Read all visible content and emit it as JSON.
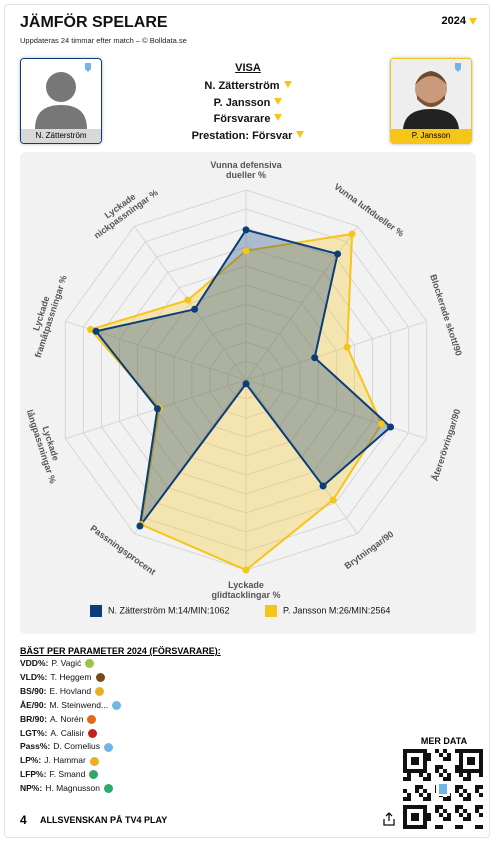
{
  "header": {
    "title": "JÄMFÖR SPELARE",
    "subtitle": "Uppdateras 24 timmar efter match – © Bolldata.se",
    "year": "2024"
  },
  "players": [
    {
      "name": "N. Zätterström"
    },
    {
      "name": "P. Jansson"
    }
  ],
  "filters": {
    "title": "VISA",
    "items": [
      "N. Zätterström",
      "P. Jansson",
      "Försvarare",
      "Prestation: Försvar"
    ]
  },
  "chart_data": {
    "type": "radar",
    "categories": [
      "Vunna defensiva dueller %",
      "Vunna luftdueller %",
      "Blockerade skott/90",
      "Återerövringar/90",
      "Brytningar/90",
      "Lyckade glidtacklingar %",
      "Passningsprocent",
      "Lyckade långpassningar %",
      "Lyckade framåtpassningar %",
      "Lyckade nickpassningar %"
    ],
    "rlim": [
      0,
      100
    ],
    "series": [
      {
        "name": "P. Jansson M:26/MIN:2564",
        "color": "#f5c518",
        "values": [
          68,
          95,
          56,
          75,
          78,
          100,
          94,
          48,
          86,
          52
        ]
      },
      {
        "name": "N. Zätterström M:14/MIN:1062",
        "color": "#0a3d7a",
        "values": [
          79,
          82,
          38,
          80,
          69,
          2,
          95,
          49,
          83,
          46
        ]
      }
    ]
  },
  "best": {
    "title": "BÄST PER PARAMETER 2024 (FÖRSVARARE):",
    "rows": [
      {
        "key": "VDD%:",
        "player": "P. Vagić"
      },
      {
        "key": "VLD%:",
        "player": "T. Heggem"
      },
      {
        "key": "BS/90:",
        "player": "E. Hovland"
      },
      {
        "key": "ÅE/90:",
        "player": "M. Steinwend..."
      },
      {
        "key": "BR/90:",
        "player": "A. Norén"
      },
      {
        "key": "LGT%:",
        "player": "A. Calisir"
      },
      {
        "key": "Pass%:",
        "player": "D. Cornelius"
      },
      {
        "key": "LP%:",
        "player": "J. Hammar"
      },
      {
        "key": "LFP%:",
        "player": "F. Smand"
      },
      {
        "key": "NP%:",
        "player": "H. Magnusson"
      }
    ]
  },
  "more_data": "MER DATA",
  "footer": {
    "logo": "4",
    "text": "ALLSVENSKAN PÅ TV4 PLAY"
  }
}
